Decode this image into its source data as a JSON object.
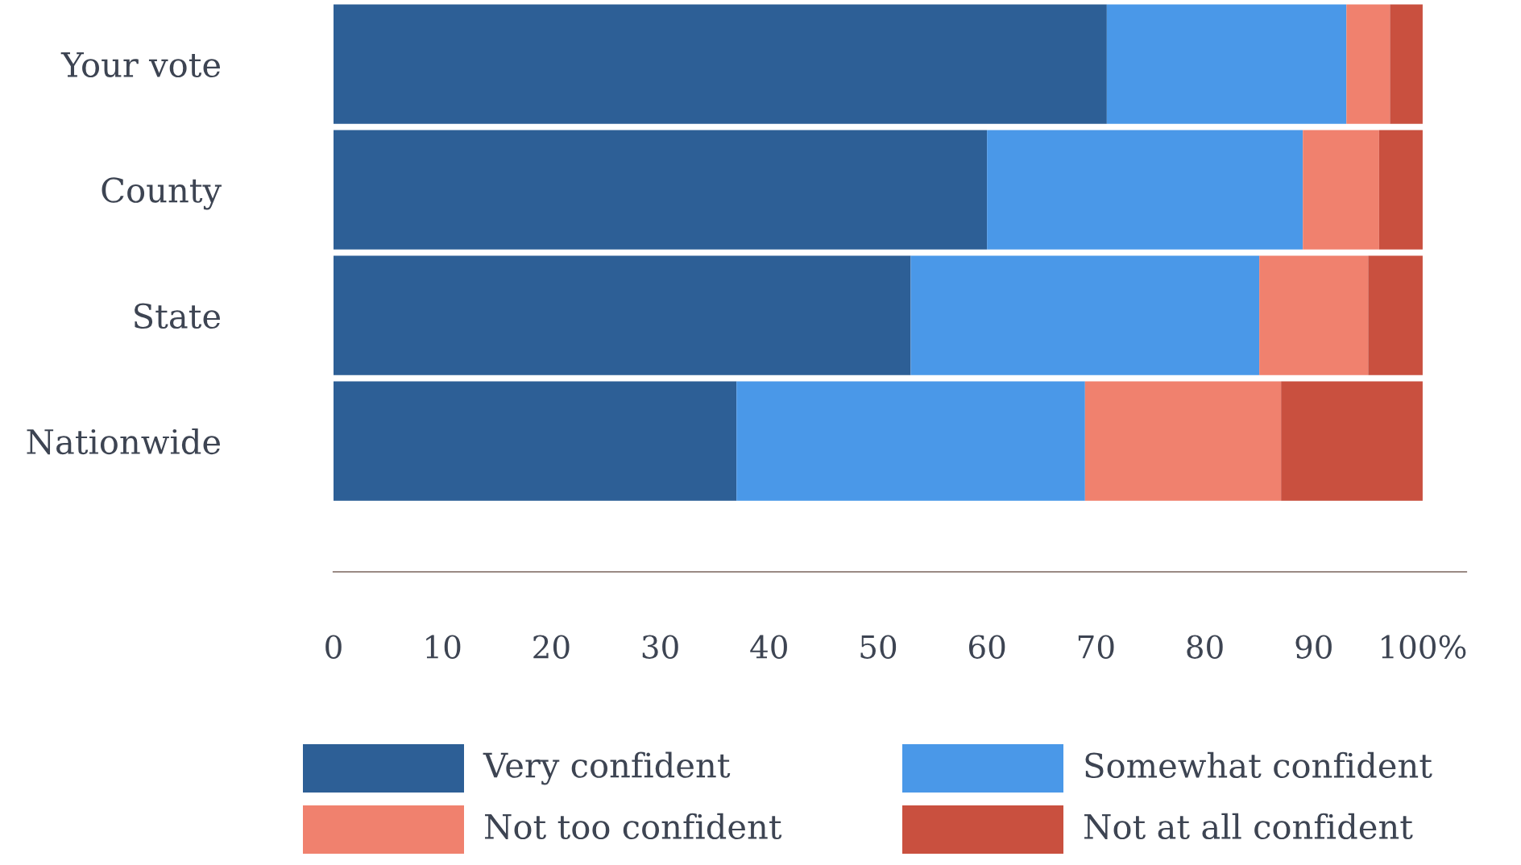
{
  "chart_data": {
    "type": "bar",
    "orientation": "horizontal",
    "stacked": true,
    "categories": [
      "Your vote",
      "County",
      "State",
      "Nationwide"
    ],
    "series": [
      {
        "name": "Very confident",
        "color": "#2d5f96",
        "values": [
          71,
          60,
          53,
          37
        ]
      },
      {
        "name": "Somewhat confident",
        "color": "#4a98e8",
        "values": [
          22,
          29,
          32,
          32
        ]
      },
      {
        "name": "Not too confident",
        "color": "#f0816e",
        "values": [
          4,
          7,
          10,
          18
        ]
      },
      {
        "name": "Not at all confident",
        "color": "#c9503f",
        "values": [
          3,
          4,
          5,
          13
        ]
      }
    ],
    "xlim": [
      0,
      104
    ],
    "xticks": [
      0,
      10,
      20,
      30,
      40,
      50,
      60,
      70,
      80,
      90,
      {
        "value": 100,
        "label": "100%"
      }
    ],
    "grid": false,
    "legend": "bottom"
  }
}
